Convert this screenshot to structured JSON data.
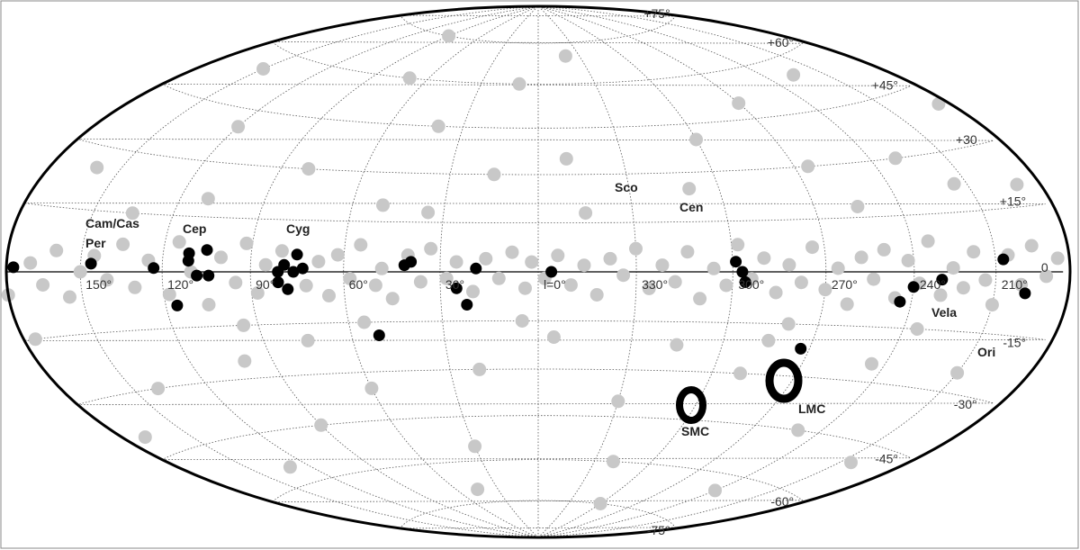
{
  "chart_data": {
    "type": "scatter",
    "projection": "hammer",
    "grid": true,
    "ylim": [
      -90,
      90
    ],
    "xticks": [
      {
        "value": 150,
        "label": "150°"
      },
      {
        "value": 120,
        "label": "120°"
      },
      {
        "value": 90,
        "label": "90°"
      },
      {
        "value": 60,
        "label": "60°"
      },
      {
        "value": 30,
        "label": "30°"
      },
      {
        "value": 0,
        "label": "l=0°"
      },
      {
        "value": 330,
        "label": "330°"
      },
      {
        "value": 300,
        "label": "300°"
      },
      {
        "value": 270,
        "label": "270°"
      },
      {
        "value": 240,
        "label": "240°"
      },
      {
        "value": 210,
        "label": "210°"
      }
    ],
    "yticks": [
      {
        "value": 75,
        "label": "+75°"
      },
      {
        "value": 60,
        "label": "+60°"
      },
      {
        "value": 45,
        "label": "+45°"
      },
      {
        "value": 30,
        "label": "+30"
      },
      {
        "value": 15,
        "label": "+15°"
      },
      0,
      {
        "value": -15,
        "label": "-15°"
      },
      {
        "value": -30,
        "label": "-30°"
      },
      {
        "value": -45,
        "label": "-45°"
      },
      {
        "value": -60,
        "label": "-60°"
      },
      {
        "value": -75,
        "label": "-75°"
      }
    ],
    "annotations": [
      "Cam/Cas",
      "Per",
      "Cep",
      "Cyg",
      "Sco",
      "Cen",
      "Vela",
      "Ori",
      "SMC",
      "LMC"
    ],
    "series": [
      {
        "color": "#c8c8c8",
        "x": [
          170,
          165,
          160,
          155,
          150,
          145,
          140,
          135,
          130,
          125,
          118,
          115,
          110,
          105,
          100,
          95,
          92,
          88,
          85,
          80,
          72,
          68,
          65,
          62,
          58,
          55,
          50,
          48,
          45,
          40,
          36,
          33,
          28,
          25,
          20,
          16,
          12,
          8,
          4,
          2,
          358,
          354,
          350,
          346,
          342,
          338,
          334,
          330,
          326,
          322,
          318,
          314,
          310,
          306,
          302,
          298,
          294,
          290,
          286,
          282,
          278,
          274,
          270,
          266,
          262,
          258,
          254,
          250,
          246,
          242,
          238,
          234,
          230,
          226,
          222,
          218,
          214,
          210,
          205,
          200,
          195,
          190,
          185,
          180,
          160,
          140,
          120,
          100,
          80,
          60,
          40,
          20,
          10,
          350,
          330,
          310,
          290,
          270,
          250,
          230,
          210,
          190,
          170,
          150,
          130,
          110,
          90,
          70,
          50,
          30,
          15,
          355,
          340,
          320,
          300,
          285,
          265,
          245,
          225,
          205,
          185,
          175,
          135,
          95,
          75,
          55,
          35,
          5,
          345,
          315,
          280,
          255,
          235,
          215,
          45,
          240,
          90,
          300
        ],
        "y": [
          2,
          -3,
          5,
          -6,
          0,
          4,
          -2,
          7,
          -4,
          3,
          -6,
          8,
          0,
          -9,
          4,
          -3,
          8,
          -6,
          2,
          6,
          -4,
          3,
          -7,
          5,
          -2,
          8,
          -4,
          1,
          -8,
          5,
          -3,
          7,
          -2,
          3,
          -6,
          4,
          -2,
          6,
          -5,
          3,
          -2,
          5,
          -4,
          2,
          -7,
          4,
          -1,
          7,
          -5,
          2,
          -3,
          6,
          -8,
          1,
          -4,
          8,
          -2,
          4,
          -6,
          2,
          -3,
          7,
          -5,
          1,
          -9,
          4,
          -2,
          6,
          -7,
          3,
          -3,
          8,
          -6,
          1,
          -4,
          5,
          -2,
          -8,
          4,
          -3,
          6,
          -1,
          3,
          -5,
          25,
          -30,
          40,
          -25,
          30,
          -35,
          45,
          -30,
          60,
          35,
          -40,
          25,
          -30,
          50,
          -45,
          30,
          -25,
          20,
          -40,
          55,
          -55,
          20,
          -45,
          60,
          20,
          -55,
          30,
          -20,
          70,
          -60,
          40,
          -20,
          30,
          -25,
          55,
          -50,
          40,
          -15,
          15,
          -15,
          -20,
          -15,
          18,
          -15,
          18,
          -22,
          -15,
          18,
          -15,
          22,
          -70,
          -65,
          75,
          -75
        ]
      },
      {
        "color": "#000000",
        "x": [
          177,
          146,
          123,
          111,
          111,
          105,
          108,
          104,
          116,
          75,
          79,
          81,
          76,
          73,
          81,
          78,
          41,
          39,
          19,
          25,
          22,
          51,
          356,
          299,
          297,
          296,
          244,
          240,
          230,
          207,
          198,
          273
        ],
        "y": [
          1,
          2,
          1,
          3,
          5,
          6,
          -1,
          -1,
          -9,
          5,
          2,
          0,
          0,
          1,
          -3,
          -5,
          2,
          3,
          1,
          -5,
          -10,
          -19,
          0,
          3,
          0,
          -3,
          -8,
          -4,
          -2,
          3,
          -5,
          -22
        ]
      }
    ]
  }
}
